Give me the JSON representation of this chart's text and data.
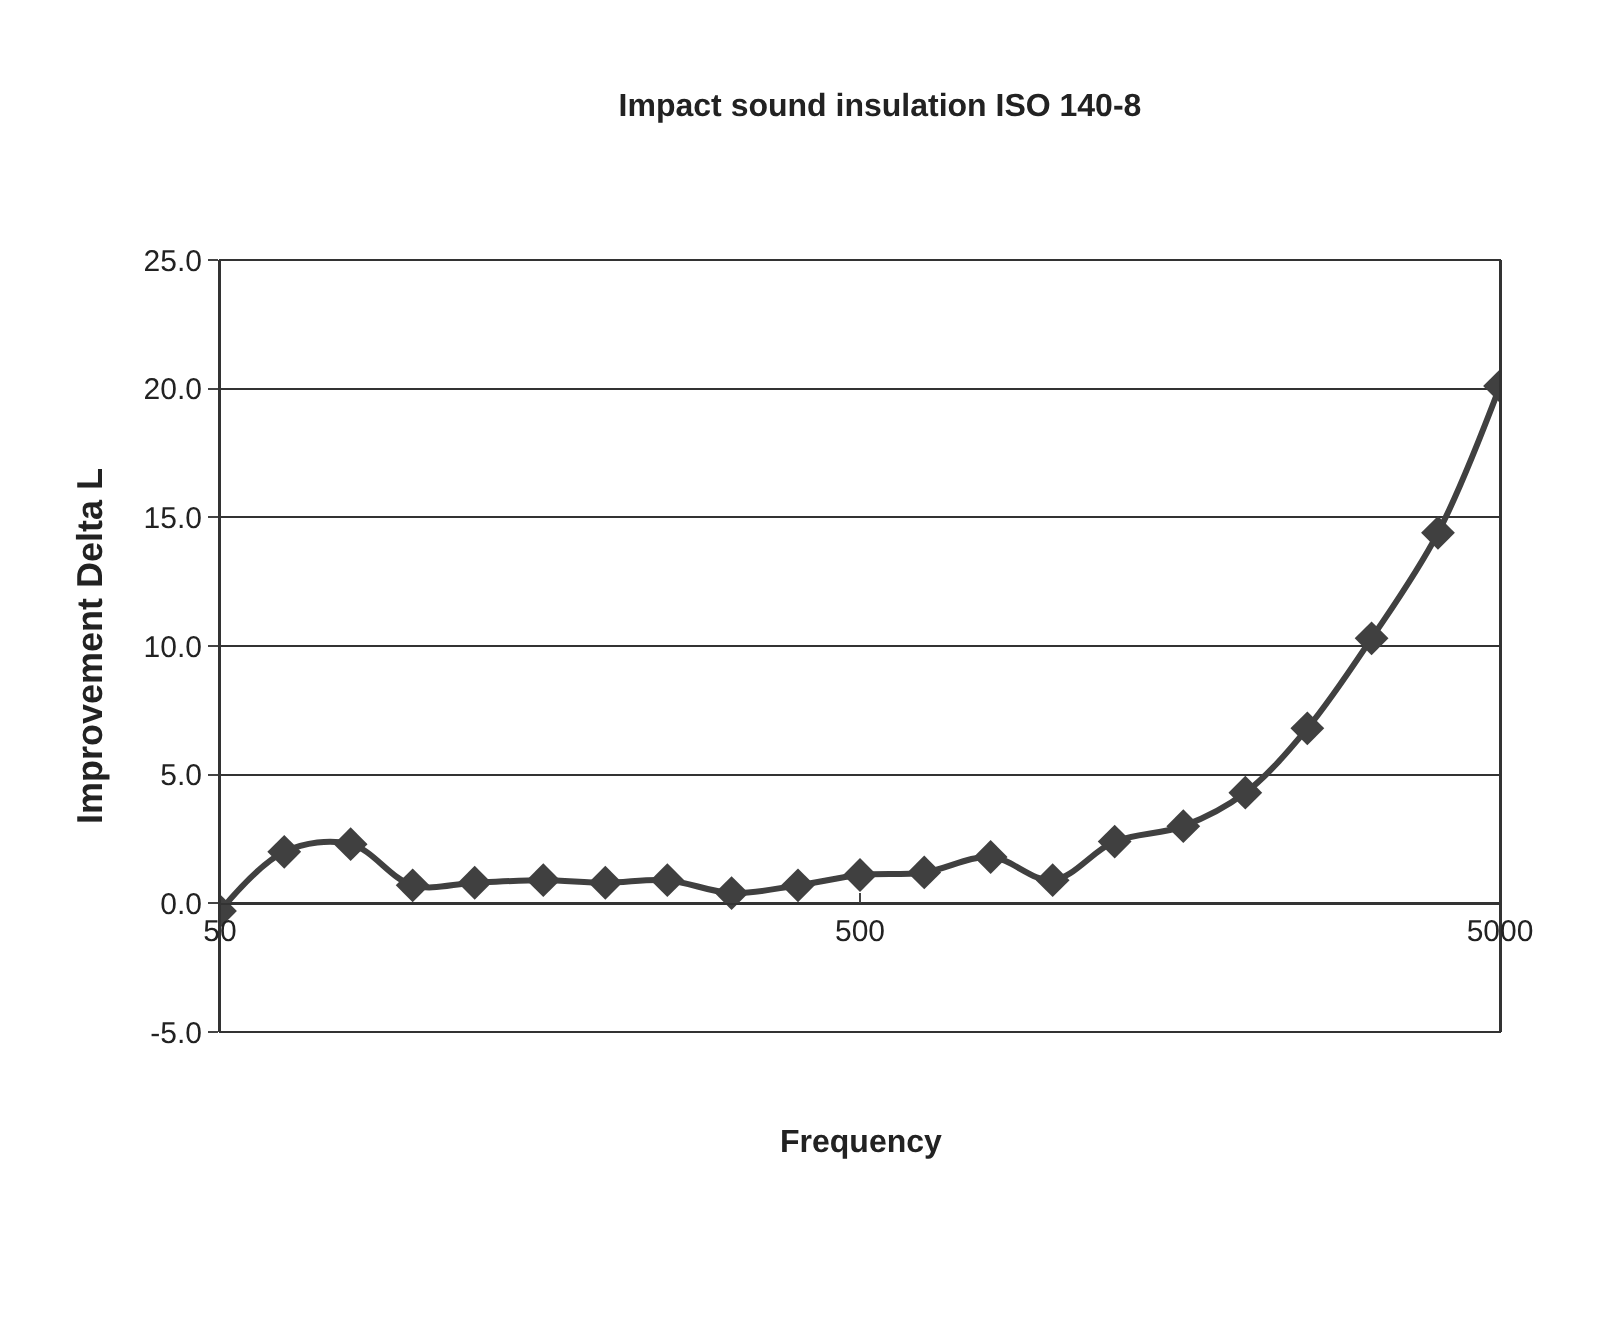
{
  "chart_data": {
    "type": "line",
    "title": "Impact sound insulation ISO 140-8",
    "xlabel": "Frequency",
    "ylabel": "Improvement Delta L",
    "x": [
      50,
      63,
      80,
      100,
      125,
      160,
      200,
      250,
      315,
      400,
      500,
      630,
      800,
      1000,
      1250,
      1600,
      2000,
      2500,
      3150,
      4000,
      5000
    ],
    "series": [
      {
        "color": "#404040",
        "values": [
          -0.3,
          2.0,
          2.3,
          0.7,
          0.8,
          0.9,
          0.8,
          0.9,
          0.4,
          0.7,
          1.1,
          1.2,
          1.8,
          0.9,
          2.4,
          3.0,
          4.3,
          6.8,
          10.3,
          14.4,
          20.1
        ]
      }
    ],
    "log": "x",
    "xlim": [
      50,
      5000
    ],
    "xticks": [
      50,
      500,
      5000
    ],
    "ylim": [
      -5,
      25
    ],
    "yticks": [
      {
        "value": -5,
        "label": "-5.0"
      },
      {
        "value": 0,
        "label": "0.0"
      },
      {
        "value": 5,
        "label": "5.0"
      },
      {
        "value": 10,
        "label": "10.0"
      },
      {
        "value": 15,
        "label": "15.0"
      },
      {
        "value": 20,
        "label": "20.0"
      },
      {
        "value": 25,
        "label": "25.0"
      }
    ],
    "grid": "y",
    "marker": "diamond",
    "line_style": "solid"
  }
}
